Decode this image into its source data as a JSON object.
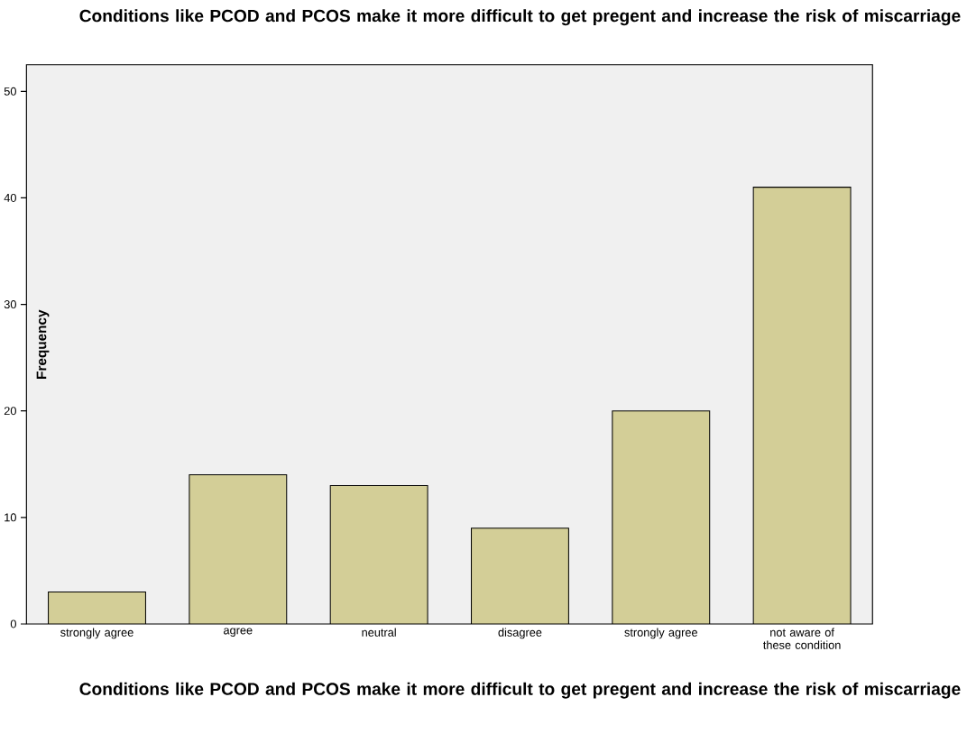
{
  "chart_data": {
    "type": "bar",
    "title": "Conditions like PCOD and PCOS make it more difficult to get pregent and increase the risk of miscarriage",
    "xlabel": "Conditions like PCOD and PCOS make it more difficult to get pregent and increase the risk of miscarriage",
    "ylabel": "Frequency",
    "categories": [
      "strongly agree",
      "agree",
      "neutral",
      "disagree",
      "strongly agree",
      "not aware of these condition"
    ],
    "values": [
      3,
      14,
      13,
      9,
      20,
      41
    ],
    "color": "#d3ce97",
    "ylim": [
      0,
      52.5
    ],
    "yticks": [
      0,
      10,
      20,
      30,
      40,
      50
    ]
  }
}
